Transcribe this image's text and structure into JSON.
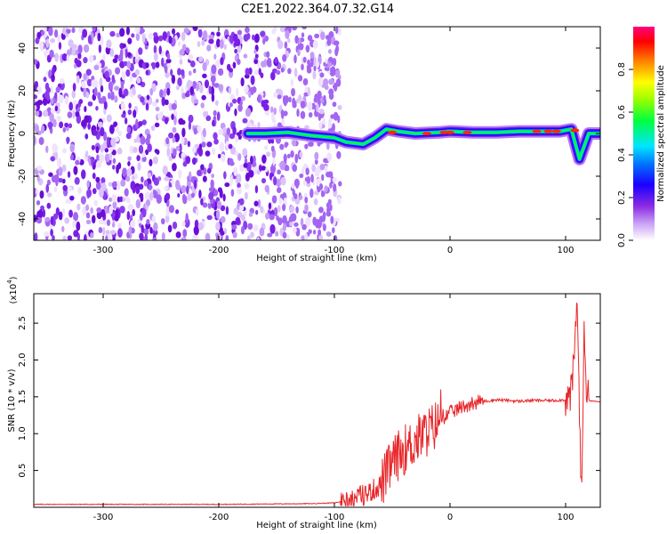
{
  "title": "C2E1.2022.364.07.32.G14",
  "chart_data": [
    {
      "type": "heatmap",
      "xlabel": "Height of straight line (km)",
      "ylabel": "Frequency (Hz)",
      "xlim": [
        -360,
        130
      ],
      "ylim": [
        -50,
        50
      ],
      "x_ticks": [
        -300,
        -200,
        -100,
        0,
        100
      ],
      "y_ticks": [
        -40,
        -20,
        0,
        20,
        40
      ],
      "grid": false,
      "noise_region_x": [
        -360,
        -95
      ],
      "signal_ridge": {
        "x": [
          -175,
          -160,
          -140,
          -120,
          -100,
          -90,
          -75,
          -65,
          -55,
          -45,
          -30,
          -10,
          0,
          20,
          40,
          60,
          80,
          95,
          105,
          112,
          120,
          130
        ],
        "y": [
          0,
          0,
          0.5,
          -1,
          -2,
          -4,
          -5,
          -2,
          2,
          1,
          0,
          0.5,
          1,
          0.5,
          0.5,
          1,
          1,
          1,
          2,
          -12,
          0,
          0
        ]
      },
      "colorbar": {
        "label": "Normalized spectral amplitude",
        "range": [
          0,
          1
        ],
        "ticks": [
          0.0,
          0.2,
          0.4,
          0.6,
          0.8
        ],
        "colors": [
          "#ffffff",
          "#8a2be2",
          "#0000ff",
          "#00e5ff",
          "#00ff00",
          "#ffff00",
          "#ff8000",
          "#ff0000",
          "#ff0080"
        ]
      }
    },
    {
      "type": "line",
      "xlabel": "Height of straight line (km)",
      "ylabel": "SNR (10 * v/v)",
      "y_multiplier_label": "(x10",
      "y_multiplier_exp": "4",
      "y_multiplier_close": ")",
      "xlim": [
        -360,
        130
      ],
      "ylim": [
        0,
        2.9
      ],
      "x_ticks": [
        -300,
        -200,
        -100,
        0,
        100
      ],
      "y_ticks": [
        0.5,
        1.0,
        1.5,
        2.0,
        2.5
      ],
      "y_tick_labels": [
        "0.5",
        "1.0",
        "1.5",
        "2.0",
        "2.5"
      ],
      "grid": false,
      "series": [
        {
          "color": "#e8262a",
          "x": [
            -360,
            -300,
            -200,
            -120,
            -100,
            -90,
            -80,
            -70,
            -60,
            -55,
            -50,
            -45,
            -40,
            -35,
            -30,
            -25,
            -20,
            -15,
            -10,
            -5,
            0,
            10,
            20,
            30,
            40,
            50,
            60,
            70,
            80,
            90,
            100,
            104,
            106,
            108,
            110,
            112,
            114,
            116,
            118,
            120,
            125,
            130
          ],
          "y": [
            0.04,
            0.04,
            0.04,
            0.05,
            0.06,
            0.09,
            0.14,
            0.2,
            0.3,
            0.45,
            0.6,
            0.7,
            0.78,
            0.82,
            0.9,
            0.96,
            1.02,
            1.08,
            1.15,
            1.22,
            1.28,
            1.36,
            1.42,
            1.44,
            1.46,
            1.45,
            1.44,
            1.45,
            1.45,
            1.45,
            1.46,
            1.5,
            1.7,
            2.2,
            2.9,
            1.2,
            0.1,
            2.55,
            1.6,
            1.45,
            1.44,
            1.43
          ]
        }
      ]
    }
  ]
}
